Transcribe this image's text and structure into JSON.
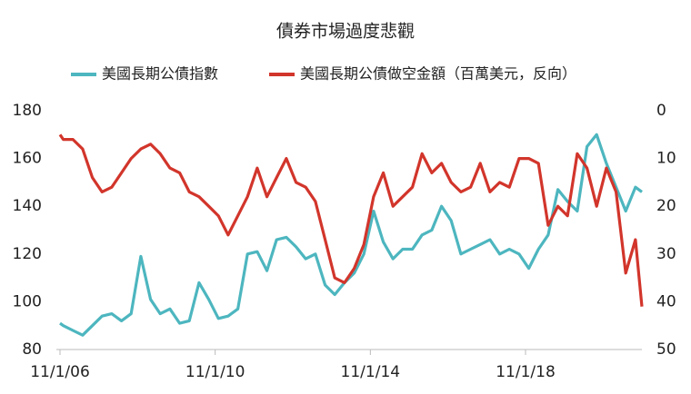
{
  "chart_data": {
    "type": "line",
    "title": "債券市場過度悲觀",
    "x": [
      "11/1/06",
      "12/1/06",
      "3/1/07",
      "6/1/07",
      "9/1/07",
      "12/1/07",
      "3/1/08",
      "6/1/08",
      "9/1/08",
      "12/1/08",
      "3/1/09",
      "6/1/09",
      "9/1/09",
      "12/1/09",
      "3/1/10",
      "6/1/10",
      "9/1/10",
      "12/1/10",
      "3/1/11",
      "6/1/11",
      "9/1/11",
      "12/1/11",
      "3/1/12",
      "6/1/12",
      "9/1/12",
      "12/1/12",
      "3/1/13",
      "6/1/13",
      "9/1/13",
      "12/1/13",
      "3/1/14",
      "6/1/14",
      "9/1/14",
      "12/1/14",
      "3/1/15",
      "6/1/15",
      "9/1/15",
      "12/1/15",
      "3/1/16",
      "6/1/16",
      "9/1/16",
      "12/1/16",
      "3/1/17",
      "6/1/17",
      "9/1/17",
      "12/1/17",
      "3/1/18",
      "6/1/18",
      "9/1/18",
      "12/1/18",
      "3/1/19",
      "6/1/19",
      "9/1/19",
      "12/1/19",
      "3/1/20",
      "6/1/20",
      "9/1/20",
      "12/1/20",
      "3/1/21",
      "6/1/21",
      "9/1/21",
      "11/1/21"
    ],
    "series": [
      {
        "name": "美國長期公債指數",
        "color": "#4db6bf",
        "axis": "y",
        "values": [
          91,
          90,
          88,
          86,
          90,
          94,
          95,
          92,
          95,
          119,
          101,
          95,
          97,
          91,
          92,
          108,
          101,
          93,
          94,
          97,
          120,
          121,
          113,
          126,
          127,
          123,
          118,
          120,
          107,
          103,
          108,
          112,
          120,
          138,
          125,
          118,
          122,
          122,
          128,
          130,
          140,
          134,
          120,
          122,
          124,
          126,
          120,
          122,
          120,
          114,
          122,
          128,
          147,
          142,
          138,
          165,
          170,
          158,
          148,
          138,
          148,
          146
        ]
      },
      {
        "name": "美國長期公債做空金額（百萬美元，反向）",
        "color": "#d2352b",
        "axis": "y2",
        "values": [
          5,
          6,
          6,
          8,
          14,
          17,
          16,
          13,
          10,
          8,
          7,
          9,
          12,
          13,
          17,
          18,
          20,
          22,
          26,
          22,
          18,
          12,
          18,
          14,
          10,
          15,
          16,
          19,
          27,
          35,
          36,
          33,
          28,
          18,
          13,
          20,
          18,
          16,
          9,
          13,
          11,
          15,
          17,
          16,
          11,
          17,
          15,
          16,
          10,
          10,
          11,
          24,
          20,
          22,
          9,
          12,
          20,
          12,
          17,
          34,
          27,
          41
        ]
      }
    ],
    "xlim": [
      "11/1/06",
      "11/1/21"
    ],
    "xticks": [
      "11/1/06",
      "11/1/10",
      "11/1/14",
      "11/1/18"
    ],
    "ylim": [
      80,
      180
    ],
    "yticks": [
      80,
      100,
      120,
      140,
      160,
      180
    ],
    "y2lim": [
      50,
      0
    ],
    "y2ticks": [
      0,
      10,
      20,
      30,
      40,
      50
    ]
  }
}
